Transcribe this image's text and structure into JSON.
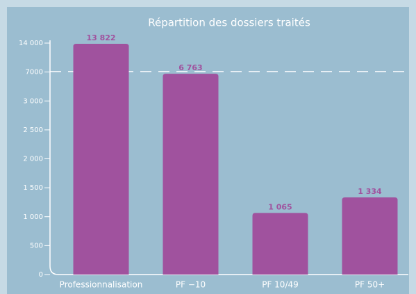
{
  "chart_data": {
    "type": "bar",
    "title": "Répartition des dossiers traités",
    "categories": [
      "Professionnalisation",
      "PF −10",
      "PF 10/49",
      "PF 50+"
    ],
    "values": [
      13822,
      6763,
      1065,
      1334
    ],
    "value_labels": [
      "13 822",
      "6 763",
      "1 065",
      "1 334"
    ],
    "color": "#a0529e",
    "ylim": [
      0,
      14000
    ],
    "yticks": [
      0,
      500,
      {
        "value": 1000,
        "label": "1 000"
      },
      {
        "value": 1500,
        "label": "1 500"
      },
      {
        "value": 2000,
        "label": "2 000"
      },
      {
        "value": 2500,
        "label": "2 500"
      },
      {
        "value": 3000,
        "label": "3 000"
      },
      7000,
      {
        "value": 14000,
        "label": "14 000"
      }
    ]
  }
}
